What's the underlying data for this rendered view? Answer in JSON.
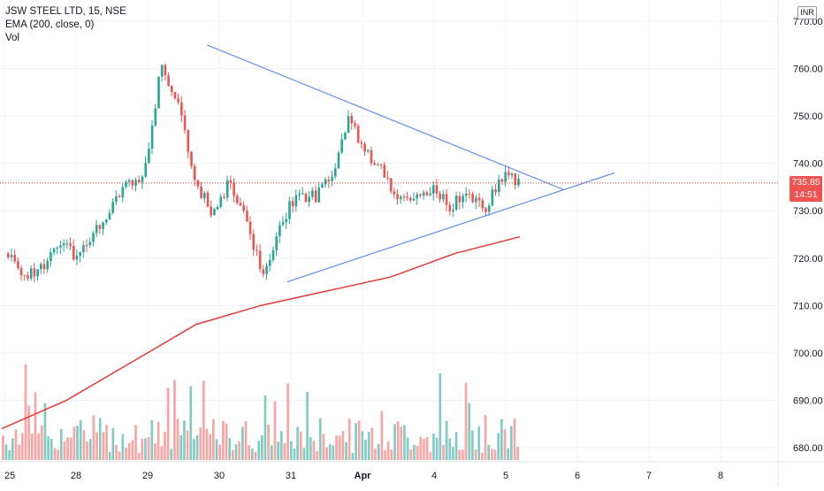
{
  "chart_data": {
    "type": "candlestick",
    "title": "JSW STEEL LTD, 15, NSE",
    "indicators": [
      "EMA (200, close, 0)",
      "Vol"
    ],
    "currency": "INR",
    "last_price": "735.85",
    "countdown": "14:51",
    "ylim": [
      676,
      772
    ],
    "y_ticks": [
      "770.00",
      "760.00",
      "750.00",
      "740.00",
      "730.00",
      "720.00",
      "710.00",
      "700.00",
      "690.00",
      "680.00"
    ],
    "x_ticks": [
      "25",
      "28",
      "29",
      "30",
      "31",
      "Apr",
      "4",
      "5",
      "6",
      "7",
      "8"
    ],
    "price_path": [
      {
        "day": "25",
        "price": 721
      },
      {
        "day": "25",
        "price": 716
      },
      {
        "day": "25",
        "price": 718
      },
      {
        "day": "28",
        "price": 724
      },
      {
        "day": "28",
        "price": 720
      },
      {
        "day": "28",
        "price": 726
      },
      {
        "day": "29",
        "price": 730
      },
      {
        "day": "29",
        "price": 736
      },
      {
        "day": "29",
        "price": 738
      },
      {
        "day": "30",
        "price": 761
      },
      {
        "day": "30",
        "price": 752
      },
      {
        "day": "30",
        "price": 735
      },
      {
        "day": "30",
        "price": 730
      },
      {
        "day": "30",
        "price": 736
      },
      {
        "day": "30",
        "price": 727
      },
      {
        "day": "31",
        "price": 716
      },
      {
        "day": "31",
        "price": 728
      },
      {
        "day": "31",
        "price": 733
      },
      {
        "day": "31",
        "price": 733
      },
      {
        "day": "Apr",
        "price": 737
      },
      {
        "day": "Apr",
        "price": 749
      },
      {
        "day": "Apr",
        "price": 742
      },
      {
        "day": "Apr",
        "price": 738
      },
      {
        "day": "Apr",
        "price": 732
      },
      {
        "day": "4",
        "price": 733
      },
      {
        "day": "4",
        "price": 735
      },
      {
        "day": "4",
        "price": 731
      },
      {
        "day": "4",
        "price": 734
      },
      {
        "day": "5",
        "price": 731
      },
      {
        "day": "5",
        "price": 737
      },
      {
        "day": "5",
        "price": 735.85
      }
    ],
    "ema_path": [
      {
        "day": "25",
        "value": 684
      },
      {
        "day": "28",
        "value": 690
      },
      {
        "day": "29",
        "value": 698
      },
      {
        "day": "30",
        "value": 706
      },
      {
        "day": "30",
        "value": 710
      },
      {
        "day": "31",
        "value": 713
      },
      {
        "day": "Apr",
        "value": 716
      },
      {
        "day": "4",
        "value": 721
      },
      {
        "day": "5",
        "value": 724.5
      }
    ],
    "volume_series": [
      {
        "color": "red",
        "count": 80
      },
      {
        "color": "green",
        "count": 80
      }
    ],
    "drawings": [
      {
        "type": "trendline",
        "from": {
          "day": "30",
          "price": 765
        },
        "to": {
          "day": "6",
          "price": 734.5
        }
      },
      {
        "type": "trendline",
        "from": {
          "day": "31",
          "price": 715
        },
        "to": {
          "day": "7",
          "price": 738
        }
      }
    ]
  },
  "colors": {
    "up": "#26a69a",
    "down": "#ef5350",
    "up_volume": "#80cbc4",
    "down_volume": "#f8a5a3",
    "ema": "#e53935",
    "trendline": "#5b8def",
    "axis_text": "#131722",
    "grid": "#f0f3fa"
  }
}
